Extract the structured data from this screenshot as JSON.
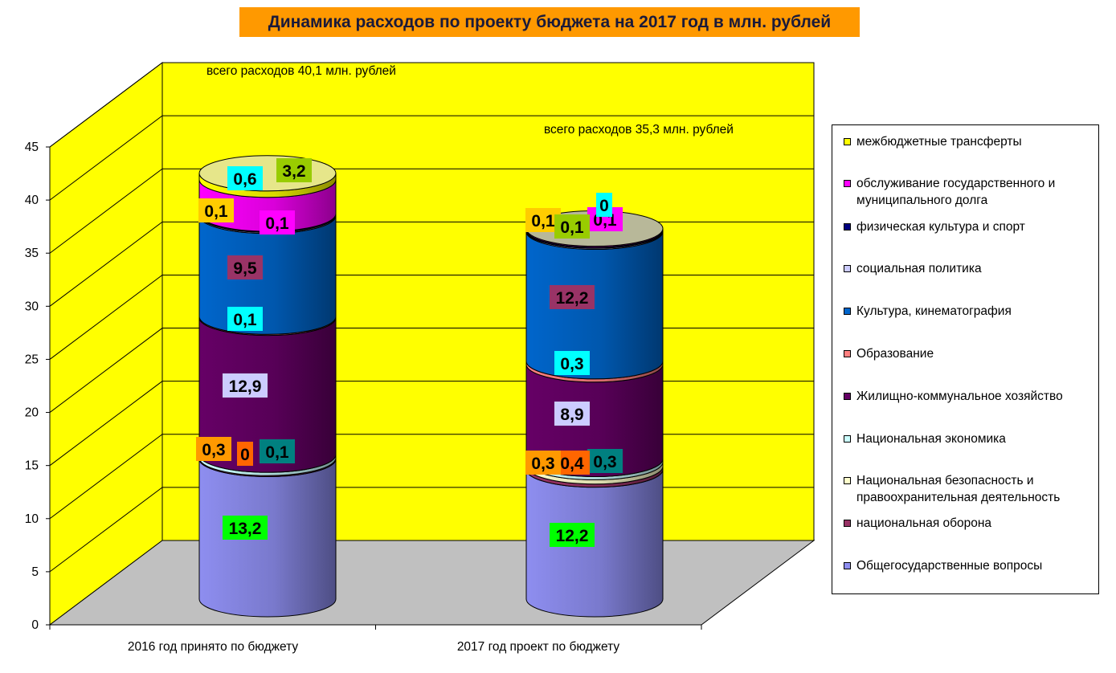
{
  "title": "Динамика расходов по проекту бюджета на 2017 год в млн. рублей",
  "colors": {
    "wall": "#ffff00",
    "floor": "#c0c0c0",
    "title_bg": "#ff9900"
  },
  "chart_data": {
    "type": "bar",
    "stacked": true,
    "three_d": true,
    "ylim": [
      0,
      45
    ],
    "yticks": [
      "0",
      "5",
      "10",
      "15",
      "20",
      "25",
      "30",
      "35",
      "40",
      "45"
    ],
    "grid": true,
    "legend_position": "right",
    "categories": [
      "2016 год принято по бюджету",
      "2017 год проект по бюджету"
    ],
    "totals_text": [
      "всего расходов 40,1 млн. рублей",
      "всего расходов 35,3 млн. рублей"
    ],
    "series": [
      {
        "name": "Общегосударственные вопросы",
        "color": "#8e8ef0",
        "values": [
          13.2,
          12.2
        ],
        "labels": [
          "13,2",
          "12,2"
        ],
        "label_bg": "#00ff00"
      },
      {
        "name": "национальная оборона",
        "color": "#993366",
        "values": [
          0.1,
          0.3
        ],
        "labels": [
          "0,1",
          "0,3"
        ],
        "label_bg": "#008080"
      },
      {
        "name": "Национальная безопасность и правоохранительная деятельность",
        "color": "#ffffcc",
        "values": [
          0.0,
          0.4
        ],
        "labels": [
          "0",
          "0,4"
        ],
        "label_bg": "#ff6600"
      },
      {
        "name": "Национальная экономика",
        "color": "#ccffff",
        "values": [
          0.3,
          0.3
        ],
        "labels": [
          "0,3",
          "0,3"
        ],
        "label_bg": "#ff9900"
      },
      {
        "name": "Жилищно-коммунальное хозяйство",
        "color": "#660066",
        "values": [
          12.9,
          8.9
        ],
        "labels": [
          "12,9",
          "8,9"
        ],
        "label_bg": "#ccccff"
      },
      {
        "name": "Образование",
        "color": "#ff8080",
        "values": [
          0.1,
          0.3
        ],
        "labels": [
          "0,1",
          "0,3"
        ],
        "label_bg": "#00ffff"
      },
      {
        "name": "Культура, кинематография",
        "color": "#0066cc",
        "values": [
          9.5,
          12.2
        ],
        "labels": [
          "9,5",
          "12,2"
        ],
        "label_bg": "#993366"
      },
      {
        "name": "социальная политика",
        "color": "#ccccff",
        "values": [
          0.1,
          0.1
        ],
        "labels": [
          "0,1",
          "0,1"
        ],
        "label_bg": "#ff00ff"
      },
      {
        "name": "физическая культура и спорт",
        "color": "#000080",
        "values": [
          0.1,
          0.1
        ],
        "labels": [
          "0,1",
          "0,1"
        ],
        "label_bg": "#ffcc00"
      },
      {
        "name": "обслуживание государственного и муниципального долга",
        "color": "#ff00ff",
        "values": [
          3.2,
          0.1
        ],
        "labels": [
          "3,2",
          "0,1"
        ],
        "label_bg": "#99cc00"
      },
      {
        "name": "межбюджетные трансферты",
        "color": "#ffff00",
        "values": [
          0.6,
          0.0
        ],
        "labels": [
          "0,6",
          "0"
        ],
        "label_bg": "#00ffff"
      }
    ]
  },
  "legend_order": [
    10,
    9,
    8,
    7,
    6,
    5,
    4,
    3,
    2,
    1,
    0
  ]
}
